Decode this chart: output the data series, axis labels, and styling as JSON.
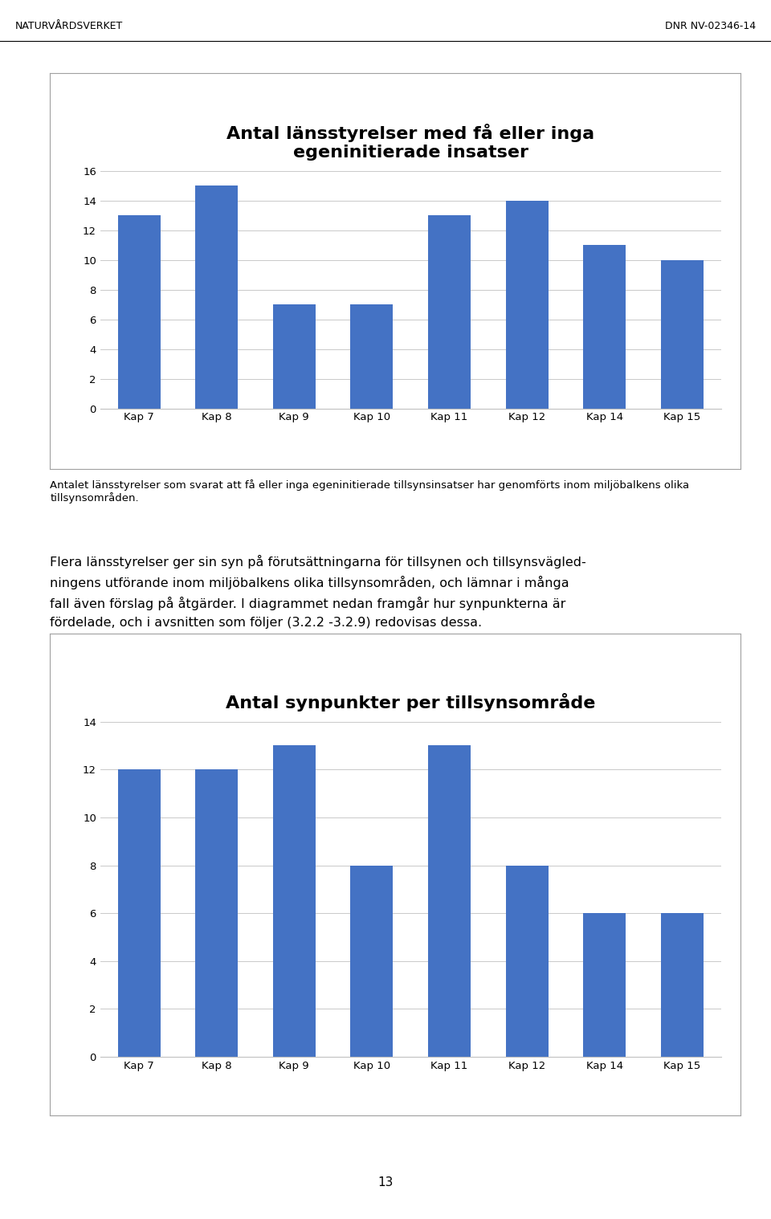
{
  "chart1": {
    "title": "Antal länsstyrelser med få eller inga\negeninitierade insatser",
    "categories": [
      "Kap 7",
      "Kap 8",
      "Kap 9",
      "Kap 10",
      "Kap 11",
      "Kap 12",
      "Kap 14",
      "Kap 15"
    ],
    "values": [
      13,
      15,
      7,
      7,
      13,
      14,
      11,
      10
    ],
    "ylim": [
      0,
      16
    ],
    "yticks": [
      0,
      2,
      4,
      6,
      8,
      10,
      12,
      14,
      16
    ],
    "caption": "Antalet länsstyrelser som svarat att få eller inga egeninitierade tillsynsinsatser har genomförts inom miljöbalkens olika tillsynsområden."
  },
  "chart2": {
    "title": "Antal synpunkter per tillsynsområde",
    "categories": [
      "Kap 7",
      "Kap 8",
      "Kap 9",
      "Kap 10",
      "Kap 11",
      "Kap 12",
      "Kap 14",
      "Kap 15"
    ],
    "values": [
      12,
      12,
      13,
      8,
      13,
      8,
      6,
      6
    ],
    "ylim": [
      0,
      14
    ],
    "yticks": [
      0,
      2,
      4,
      6,
      8,
      10,
      12,
      14
    ]
  },
  "header_left": "NATURVÅRDSVERKET",
  "header_right": "DNR NV-02346-14",
  "body_text_line1": "Flera länsstyrelser ger sin syn på förutsättningarna för tillsynen och tillsynsvägled-",
  "body_text_line2": "ningens utförande inom miljöbalkens olika tillsynsområden, och lämnar i många",
  "body_text_line3": "fall även förslag på åtgärder. I diagrammet nedan framgår hur synpunkterna är",
  "body_text_line4": "fördelade, och i avsnitten som följer (3.2.2 -3.2.9) redovisas dessa.",
  "page_number": "13",
  "background_color": "#ffffff",
  "bar_color": "#4472C4",
  "grid_color": "#C0C0C0",
  "box_line_color": "#A0A0A0",
  "title_fontsize": 16,
  "tick_fontsize": 9.5,
  "caption_fontsize": 9.5,
  "body_fontsize": 11.5
}
